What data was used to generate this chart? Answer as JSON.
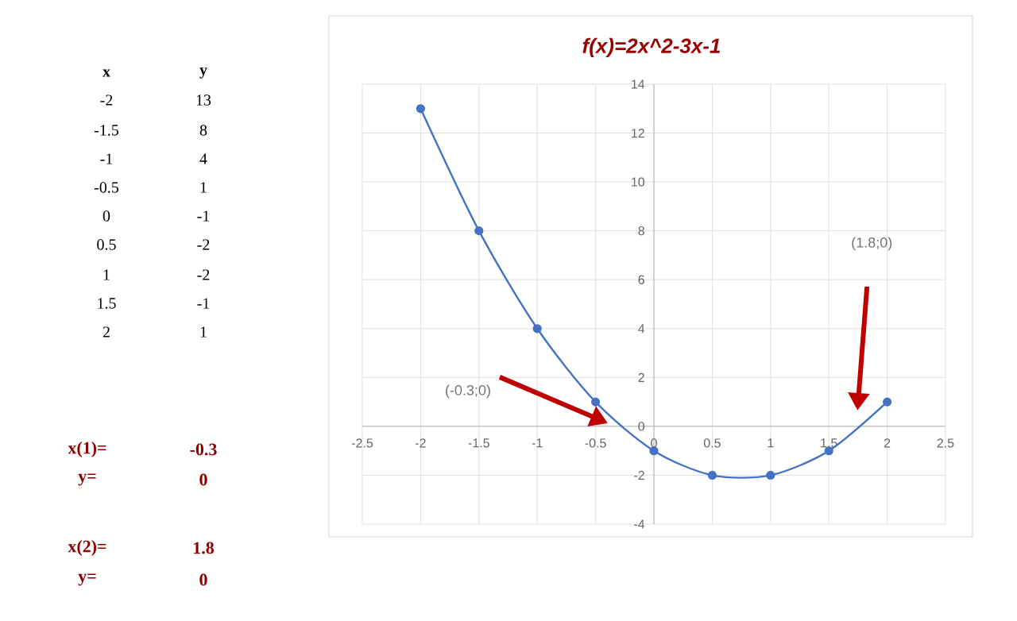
{
  "chart_data": {
    "type": "line",
    "title": "f(x)=2x^2-3x-1",
    "x": [
      -2,
      -1.5,
      -1,
      -0.5,
      0,
      0.5,
      1,
      1.5,
      2
    ],
    "series": [
      {
        "color": "#4472c4",
        "values": [
          13,
          8,
          4,
          1,
          -1,
          -2,
          -2,
          -1,
          1
        ]
      }
    ],
    "xlim": [
      -2.5,
      2.5
    ],
    "xticks": [
      -2.5,
      -2,
      -1.5,
      -1,
      -0.5,
      0,
      0.5,
      1,
      1.5,
      2,
      2.5
    ],
    "ylim": [
      -4,
      14
    ],
    "yticks": [
      -4,
      -2,
      0,
      2,
      4,
      6,
      8,
      10,
      12,
      14
    ],
    "grid": true,
    "marker": "circle",
    "line_style": "solid",
    "annotations": [
      "(-0.3;0)",
      "(1.8;0)",
      "x",
      "y",
      "-2",
      "13",
      "-1.5",
      "8",
      "-1",
      "4",
      "-0.5",
      "1",
      "0",
      "-1",
      "0.5",
      "-2",
      "1",
      "-2",
      "1.5",
      "-1",
      "2",
      "1",
      "x(1)=",
      "-0.3",
      "y=",
      "0",
      "x(2)=",
      "1.8",
      "y=",
      "0"
    ]
  }
}
